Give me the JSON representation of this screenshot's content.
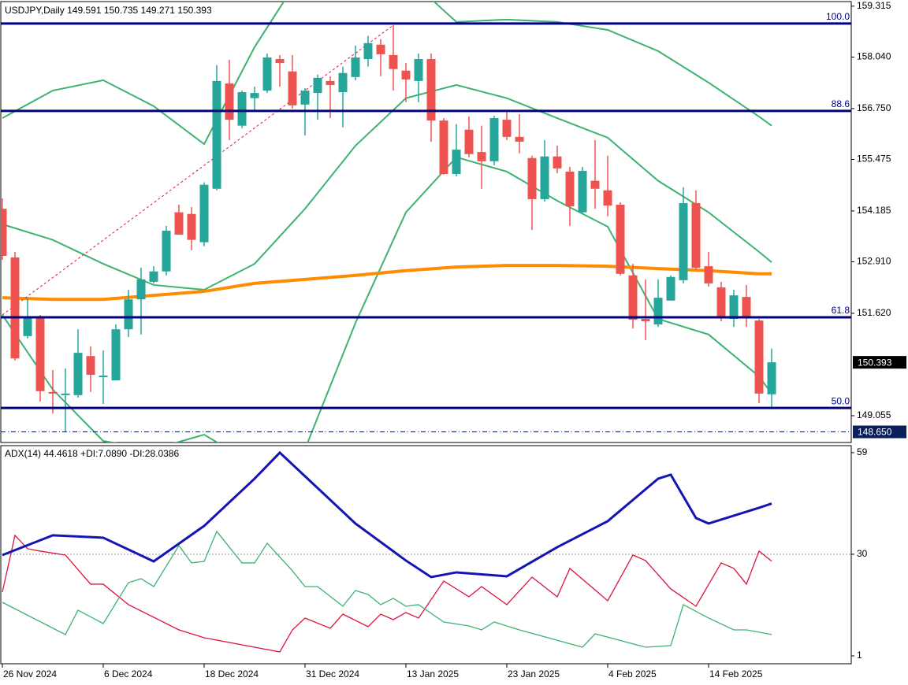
{
  "chart_data": [
    {
      "type": "candlestick",
      "title": "USDJPY,Daily  149.591 150.735 149.271 150.393",
      "categories": [
        "26 Nov 2024",
        null,
        null,
        null,
        null,
        null,
        null,
        null,
        "6 Dec 2024",
        null,
        null,
        null,
        null,
        null,
        null,
        null,
        "18 Dec 2024",
        null,
        null,
        null,
        null,
        null,
        null,
        null,
        "31 Dec 2024",
        null,
        null,
        null,
        null,
        null,
        null,
        null,
        "13 Jan 2025",
        null,
        null,
        null,
        null,
        null,
        null,
        null,
        "23 Jan 2025",
        null,
        null,
        null,
        null,
        null,
        null,
        null,
        "4 Feb 2025",
        null,
        null,
        null,
        null,
        null,
        null,
        null,
        "14 Feb 2025",
        null,
        null,
        null,
        null,
        null
      ],
      "open": [
        154.24,
        153.02,
        151.05,
        151.52,
        149.65,
        149.57,
        149.57,
        150.55,
        150.02,
        149.94,
        151.22,
        151.97,
        152.41,
        152.67,
        154.15,
        154.11,
        153.4,
        154.74,
        157.38,
        156.32,
        157.01,
        157.2,
        157.99,
        157.68,
        156.85,
        157.14,
        157.44,
        157.16,
        157.54,
        157.99,
        158.35,
        158.09,
        157.7,
        157.44,
        157.99,
        156.45,
        155.11,
        156.22,
        155.66,
        155.43,
        156.47,
        156.04,
        155.51,
        154.48,
        155.55,
        155.17,
        154.15,
        154.94,
        154.7,
        154.34,
        152.57,
        151.48,
        151.34,
        151.94,
        152.45,
        154.38,
        152.8,
        152.27,
        151.48,
        152.03,
        151.44,
        149.591
      ],
      "high": [
        154.5,
        153.16,
        152.01,
        151.58,
        150.2,
        150.24,
        151.22,
        150.79,
        150.69,
        151.34,
        152.21,
        152.76,
        152.8,
        153.81,
        154.34,
        154.28,
        154.9,
        157.84,
        157.97,
        157.2,
        157.3,
        158.13,
        158.09,
        158.09,
        157.26,
        157.6,
        157.56,
        157.8,
        158.33,
        158.57,
        158.49,
        158.84,
        157.89,
        158.13,
        158.13,
        156.51,
        156.36,
        156.55,
        156.32,
        156.57,
        156.71,
        156.61,
        155.57,
        155.96,
        155.82,
        155.29,
        155.29,
        155.96,
        155.57,
        154.4,
        152.86,
        152.47,
        152.47,
        152.57,
        154.78,
        154.7,
        153.16,
        152.41,
        152.21,
        152.33,
        151.48,
        150.735
      ],
      "low": [
        152.96,
        150.44,
        150.99,
        149.41,
        149.11,
        148.66,
        149.51,
        149.65,
        149.35,
        149.94,
        151.03,
        151.09,
        152.37,
        152.57,
        153.59,
        153.2,
        153.3,
        154.7,
        155.96,
        156.26,
        156.71,
        157.14,
        157.3,
        156.75,
        156.08,
        156.47,
        156.51,
        156.28,
        157.46,
        157.8,
        157.56,
        157.2,
        156.91,
        156.91,
        155.92,
        155.09,
        155.05,
        155.53,
        154.74,
        155.33,
        155.96,
        155.63,
        153.71,
        154.42,
        155.13,
        153.81,
        154.11,
        154.24,
        154.05,
        152.57,
        151.24,
        150.95,
        151.28,
        151.94,
        152.37,
        152.72,
        152.29,
        151.42,
        151.28,
        151.28,
        149.37,
        149.271
      ],
      "close": [
        153.06,
        150.49,
        151.52,
        149.67,
        149.61,
        149.61,
        150.63,
        150.08,
        150.06,
        151.22,
        151.97,
        152.47,
        152.67,
        153.69,
        153.59,
        153.46,
        154.84,
        157.44,
        156.47,
        157.16,
        157.14,
        158.03,
        157.89,
        156.83,
        157.2,
        157.52,
        157.34,
        157.64,
        158.03,
        158.39,
        158.11,
        157.74,
        157.48,
        157.99,
        156.45,
        155.11,
        155.72,
        155.61,
        155.43,
        156.51,
        156.04,
        155.92,
        154.48,
        155.55,
        155.25,
        154.3,
        155.19,
        154.74,
        154.32,
        152.61,
        151.46,
        151.42,
        152.01,
        152.53,
        154.38,
        152.76,
        152.37,
        151.5,
        152.07,
        151.5,
        149.61,
        150.393
      ],
      "up_color": "#26a69a",
      "down_color": "#ef5350",
      "overlays": [
        {
          "color": "#3cb371",
          "x": [
            0,
            4,
            8,
            12,
            16,
            20,
            24,
            28,
            32,
            36,
            40,
            44,
            48,
            52,
            56,
            60,
            61
          ],
          "values": [
            156.51,
            157.2,
            157.46,
            156.81,
            155.86,
            158.29,
            160.26,
            160.66,
            160.07,
            158.92,
            158.98,
            158.92,
            158.72,
            158.19,
            157.4,
            156.55,
            156.32
          ]
        },
        {
          "color": "#3cb371",
          "x": [
            0,
            4,
            8,
            12,
            16,
            20,
            24,
            28,
            32,
            36,
            40,
            44,
            48,
            52,
            56,
            60,
            61
          ],
          "values": [
            153.85,
            153.46,
            152.86,
            152.33,
            152.21,
            152.86,
            154.24,
            155.82,
            157.01,
            157.34,
            157.01,
            156.51,
            156.02,
            154.94,
            154.15,
            153.16,
            152.9
          ]
        },
        {
          "color": "#3cb371",
          "x": [
            0,
            4,
            8,
            12,
            16,
            20,
            24,
            28,
            32,
            36,
            40,
            44,
            48,
            52,
            56,
            60,
            61
          ],
          "values": [
            151.58,
            149.71,
            148.42,
            148.22,
            148.58,
            147.83,
            148.22,
            151.38,
            154.15,
            155.53,
            155.17,
            154.44,
            153.79,
            151.48,
            151.09,
            150.04,
            149.61
          ]
        },
        {
          "color": "#ff8c00",
          "x": [
            0,
            4,
            8,
            12,
            16,
            20,
            24,
            28,
            32,
            36,
            40,
            44,
            48,
            52,
            56,
            60,
            61
          ],
          "values": [
            152.01,
            151.97,
            151.97,
            152.07,
            152.17,
            152.37,
            152.47,
            152.57,
            152.69,
            152.78,
            152.82,
            152.82,
            152.8,
            152.74,
            152.69,
            152.61,
            152.61
          ]
        }
      ],
      "trendline": {
        "color": "#dc143c",
        "x": [
          0,
          31
        ],
        "values": [
          151.58,
          158.84
        ]
      },
      "fib_levels": [
        {
          "value": 158.88,
          "label": "100.0"
        },
        {
          "value": 156.69,
          "label": "88.6"
        },
        {
          "value": 151.52,
          "label": "61.8"
        },
        {
          "value": 149.25,
          "label": "50.0"
        }
      ],
      "fib_color": "#000080",
      "price_markers": [
        {
          "value": 150.393,
          "color": "#000000"
        },
        {
          "value": 148.65,
          "label": "148.650",
          "color": "#0a1f5c"
        }
      ],
      "ylim": [
        148.384,
        159.43
      ],
      "yticks": [
        159.315,
        {
          "value": 158.04,
          "label": "158.040"
        },
        {
          "value": 156.75,
          "label": "156.750"
        },
        155.475,
        154.185,
        {
          "value": 152.91,
          "label": "152.910"
        },
        {
          "value": 151.62,
          "label": "151.620"
        },
        149.055
      ]
    },
    {
      "type": "line",
      "title": "ADX(14) 44.4618 +DI:7.0890 -DI:28.0386",
      "series": [
        {
          "color": "#1414b4",
          "width": 3,
          "x": [
            0,
            4,
            8,
            12,
            16,
            20,
            22,
            24,
            28,
            32,
            34,
            36,
            40,
            44,
            48,
            52,
            53,
            55,
            56,
            60,
            61
          ],
          "values": [
            29.77,
            35.4,
            34.72,
            27.97,
            38.09,
            51.58,
            59,
            52.26,
            38.77,
            28.2,
            23.48,
            24.83,
            23.7,
            32.02,
            39.44,
            51.58,
            52.71,
            40.34,
            38.77,
            43.26,
            44.46
          ]
        },
        {
          "color": "#3cb371",
          "width": 1.3,
          "x": [
            0,
            5,
            6,
            8,
            10,
            11,
            12,
            14,
            15,
            16,
            17,
            19,
            20,
            21,
            23,
            24,
            25,
            27,
            28,
            29,
            30,
            31,
            32,
            33,
            35,
            37,
            38,
            39,
            41,
            46,
            47,
            51,
            53,
            54,
            56,
            58,
            59,
            61
          ],
          "values": [
            16.28,
            7.07,
            14.04,
            10.21,
            21.9,
            23.03,
            20.78,
            32.47,
            27.53,
            27.97,
            36.52,
            27.53,
            27.53,
            33.15,
            25.28,
            20.78,
            20.78,
            15.16,
            19.66,
            18.53,
            15.61,
            17.41,
            15.16,
            15.61,
            10.66,
            9.54,
            8.42,
            10.66,
            8.42,
            3.47,
            7.29,
            3.47,
            3.92,
            15.61,
            11.79,
            8.42,
            8.42,
            7.09
          ]
        },
        {
          "color": "#dc143c",
          "width": 1.3,
          "x": [
            0,
            1,
            2,
            3,
            5,
            7,
            8,
            10,
            14,
            16,
            22,
            23,
            24,
            26,
            27,
            29,
            30,
            31,
            32,
            33,
            35,
            37,
            38,
            40,
            42,
            44,
            45,
            48,
            50,
            51,
            53,
            55,
            57,
            58,
            59,
            60,
            61
          ],
          "values": [
            19.21,
            35.39,
            31.57,
            30.9,
            29.77,
            21.46,
            21.46,
            15.61,
            8.42,
            6.17,
            2.12,
            8.42,
            11.79,
            8.87,
            12.91,
            9.31,
            12.91,
            11.34,
            13.36,
            11.79,
            22.35,
            17.86,
            20.78,
            15.61,
            23.48,
            17.86,
            25.95,
            16.73,
            29.77,
            28.2,
            20.11,
            15.16,
            27.53,
            25.95,
            21.46,
            30.9,
            28.04
          ]
        }
      ],
      "levels": [
        30
      ],
      "ylim": [
        -1.25,
        61.0
      ],
      "yticks": [
        59,
        30,
        1
      ]
    }
  ]
}
